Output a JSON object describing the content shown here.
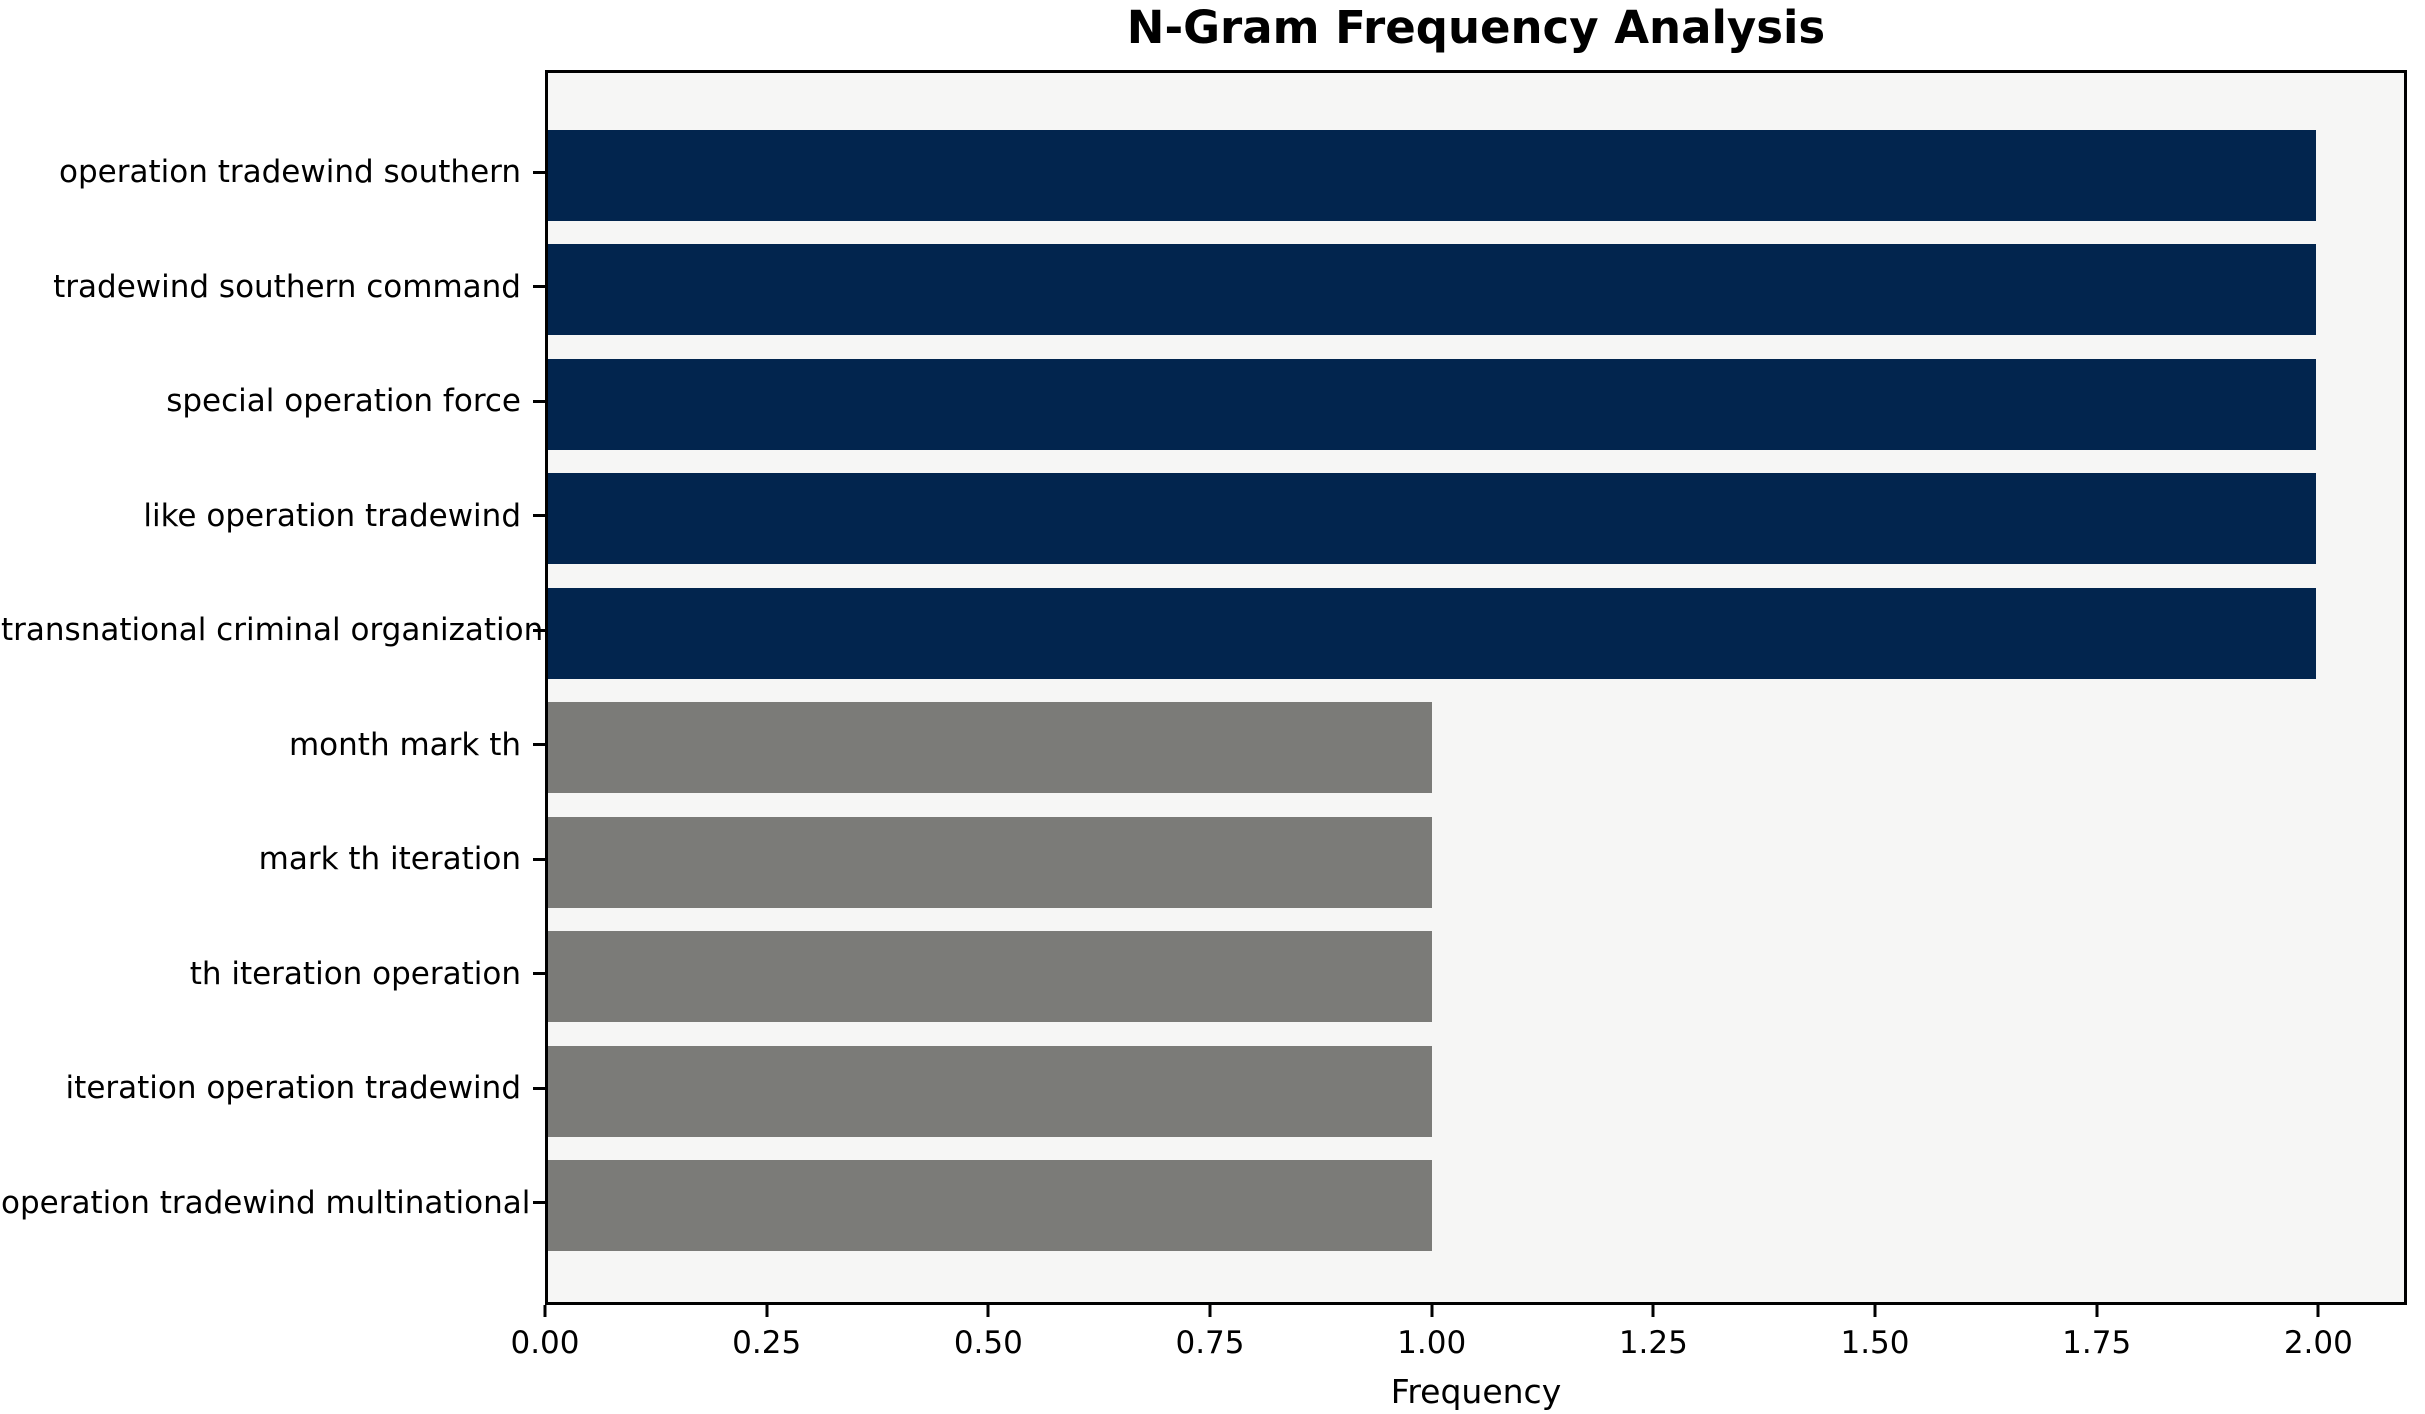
{
  "chart_data": {
    "type": "bar",
    "orientation": "horizontal",
    "title": "N-Gram Frequency Analysis",
    "xlabel": "Frequency",
    "ylabel": "",
    "categories": [
      "operation tradewind southern",
      "tradewind southern command",
      "special operation force",
      "like operation tradewind",
      "transnational criminal organization",
      "month mark th",
      "mark th iteration",
      "th iteration operation",
      "iteration operation tradewind",
      "operation tradewind multinational"
    ],
    "values": [
      2,
      2,
      2,
      2,
      2,
      1,
      1,
      1,
      1,
      1
    ],
    "bar_colors": [
      "#02254e",
      "#02254e",
      "#02254e",
      "#02254e",
      "#02254e",
      "#7b7b78",
      "#7b7b78",
      "#7b7b78",
      "#7b7b78",
      "#7b7b78"
    ],
    "xlim": [
      0,
      2.1
    ],
    "xtick_values": [
      0.0,
      0.25,
      0.5,
      0.75,
      1.0,
      1.25,
      1.5,
      1.75,
      2.0
    ],
    "xtick_labels": [
      "0.00",
      "0.25",
      "0.50",
      "0.75",
      "1.00",
      "1.25",
      "1.50",
      "1.75",
      "2.00"
    ],
    "grid": false,
    "legend": "none",
    "colors": {
      "highlight_bar": "#02254e",
      "secondary_bar": "#7b7b78",
      "plot_background": "#f6f6f5",
      "figure_background": "#ffffff",
      "axis_frame": "#000000",
      "text": "#000000"
    }
  }
}
